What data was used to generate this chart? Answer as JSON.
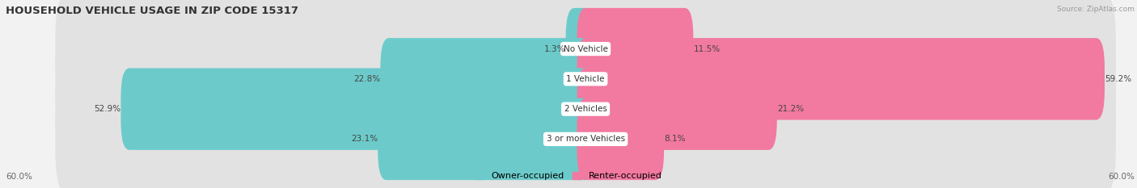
{
  "title": "HOUSEHOLD VEHICLE USAGE IN ZIP CODE 15317",
  "source": "Source: ZipAtlas.com",
  "categories": [
    "No Vehicle",
    "1 Vehicle",
    "2 Vehicles",
    "3 or more Vehicles"
  ],
  "owner_values": [
    1.3,
    22.8,
    52.9,
    23.1
  ],
  "renter_values": [
    11.5,
    59.2,
    21.2,
    8.1
  ],
  "max_scale": 60.0,
  "owner_color": "#6CCBCA",
  "renter_color": "#F279A0",
  "bg_color": "#F2F2F2",
  "bar_bg_color": "#E2E2E2",
  "row_bg_color": "#EAEAEA",
  "title_fontsize": 9.5,
  "label_fontsize": 7.5,
  "pct_fontsize": 7.5,
  "legend_fontsize": 8,
  "source_fontsize": 6.5,
  "axis_label_left": "60.0%",
  "axis_label_right": "60.0%"
}
